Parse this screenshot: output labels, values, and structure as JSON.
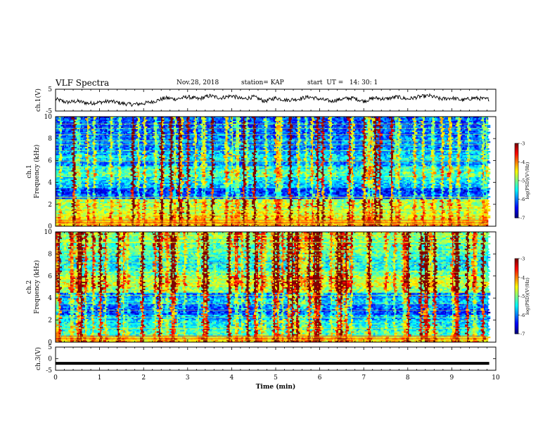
{
  "header": {
    "title": "VLF Spectra",
    "date": "Nov.28, 2018",
    "station": "station= KAP",
    "start": "start  UT =   14: 30: 1"
  },
  "colorbars": [
    {
      "label": "log(PSD)(V²/Hz)",
      "ticks": [
        "-3",
        "-4",
        "-5",
        "-6",
        "-7"
      ]
    },
    {
      "label": "log(PSD)(V²/Hz)",
      "ticks": [
        "-3",
        "-4",
        "-5",
        "-6",
        "-7"
      ]
    }
  ],
  "chart_data": [
    {
      "type": "line",
      "ylabel": "ch.1(V)",
      "ylim": [
        -5,
        5
      ],
      "yticks": [
        "5",
        "-5"
      ],
      "xlim": [
        0,
        10
      ],
      "x": [
        0,
        0.25,
        0.5,
        0.75,
        1.0,
        1.25,
        1.5,
        1.75,
        2.0,
        2.25,
        2.5,
        2.75,
        3.0,
        3.25,
        3.5,
        3.75,
        4.0,
        4.25,
        4.5,
        4.75,
        5.0,
        5.25,
        5.5,
        5.75,
        6.0,
        6.25,
        6.5,
        6.75,
        7.0,
        7.25,
        7.5,
        7.75,
        8.0,
        8.25,
        8.5,
        8.75,
        9.0,
        9.25,
        9.5,
        9.75,
        9.85
      ],
      "values": [
        0.5,
        -1.0,
        -0.5,
        -1.5,
        -1.0,
        -0.5,
        -1.5,
        -2.0,
        -1.5,
        -0.5,
        1.0,
        0.5,
        1.5,
        0.5,
        2.0,
        1.0,
        2.0,
        0.5,
        1.5,
        -0.5,
        1.0,
        0.0,
        0.5,
        1.5,
        0.5,
        -0.5,
        0.5,
        1.0,
        -0.5,
        1.0,
        0.5,
        1.5,
        0.5,
        1.5,
        2.0,
        0.5,
        1.0,
        0.0,
        1.0,
        0.5,
        0.5
      ]
    },
    {
      "type": "heatmap",
      "ylabel": "ch.1 Frequency (kHz)",
      "ylim": [
        0,
        10
      ],
      "yticks": [
        "0",
        "2",
        "4",
        "6",
        "8",
        "10"
      ],
      "xlim": [
        0,
        10
      ],
      "z_range": [
        -7,
        -3
      ],
      "freq_kHz": [
        0.25,
        0.75,
        1.25,
        1.75,
        2.25,
        2.75,
        3.25,
        3.75,
        4.25,
        4.75,
        5.25,
        5.75,
        6.25,
        6.75,
        7.25,
        7.75,
        8.25,
        8.75,
        9.25,
        9.75
      ],
      "band_log_psd": [
        -4.4,
        -4.7,
        -4.9,
        -5.0,
        -5.0,
        -6.4,
        -6.6,
        -6.0,
        -5.8,
        -5.4,
        -5.6,
        -6.2,
        -5.8,
        -6.1,
        -6.3,
        -6.2,
        -6.4,
        -6.4,
        -6.5,
        -6.5
      ]
    },
    {
      "type": "heatmap",
      "ylabel": "ch.2 Frequency (kHz)",
      "ylim": [
        0,
        10
      ],
      "yticks": [
        "0",
        "2",
        "4",
        "6",
        "8",
        "10"
      ],
      "xlim": [
        0,
        10
      ],
      "z_range": [
        -7,
        -3
      ],
      "freq_kHz": [
        0.25,
        0.75,
        1.25,
        1.75,
        2.25,
        2.75,
        3.25,
        3.75,
        4.25,
        4.75,
        5.25,
        5.75,
        6.25,
        6.75,
        7.25,
        7.75,
        8.25,
        8.75,
        9.25,
        9.75
      ],
      "band_log_psd": [
        -4.6,
        -5.4,
        -5.6,
        -5.7,
        -6.0,
        -6.5,
        -6.3,
        -5.9,
        -6.2,
        -5.2,
        -4.9,
        -5.0,
        -5.3,
        -5.7,
        -5.8,
        -5.6,
        -5.5,
        -5.4,
        -5.3,
        -5.2
      ]
    },
    {
      "type": "line",
      "ylabel": "ch.3(V)",
      "ylim": [
        -5,
        5
      ],
      "yticks": [
        "5",
        "0",
        "-5"
      ],
      "xlim": [
        0,
        10
      ],
      "x": [
        0,
        9.85
      ],
      "values": [
        -2,
        -2
      ],
      "xlabel": "Time  (min)",
      "xticks": [
        "0",
        "1",
        "2",
        "3",
        "4",
        "5",
        "6",
        "7",
        "8",
        "9",
        "10"
      ]
    }
  ]
}
